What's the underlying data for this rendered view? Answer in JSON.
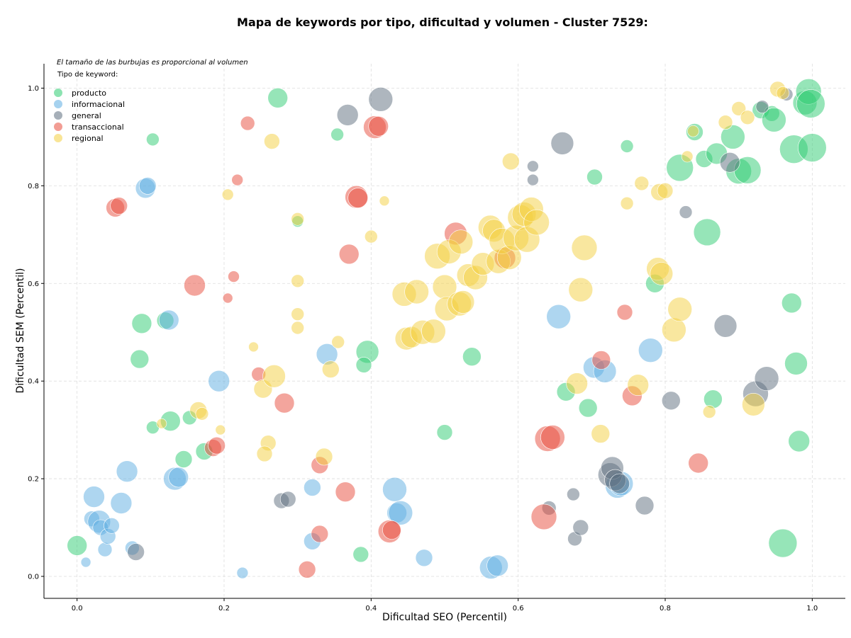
{
  "chart_data": {
    "type": "scatter",
    "title": "Mapa de keywords por tipo, dificultad y volumen - Cluster 7529:",
    "xlabel": "Dificultad SEO (Percentil)",
    "ylabel": "Dificultad SEM (Percentil)",
    "xlim": [
      -0.045,
      1.045
    ],
    "ylim": [
      -0.045,
      1.05
    ],
    "xticks": [
      "0.0",
      "0.2",
      "0.4",
      "0.6",
      "0.8",
      "1.0"
    ],
    "yticks": [
      "0.0",
      "0.2",
      "0.4",
      "0.6",
      "0.8",
      "1.0"
    ],
    "xtick_values": [
      0,
      0.2,
      0.4,
      0.6,
      0.8,
      1.0
    ],
    "ytick_values": [
      0,
      0.2,
      0.4,
      0.6,
      0.8,
      1.0
    ],
    "grid": true,
    "note": "El tamaño de las burbujas es proporcional al volumen",
    "legend": {
      "title": "Tipo de keyword:",
      "position": "top-left"
    },
    "series": [
      {
        "name": "producto",
        "color": "#2ecc71",
        "points": [
          [
            0.0,
            0.063,
            14
          ],
          [
            0.273,
            0.98,
            14
          ],
          [
            0.103,
            0.895,
            9
          ],
          [
            0.354,
            0.905,
            9
          ],
          [
            0.088,
            0.518,
            14
          ],
          [
            0.085,
            0.445,
            13
          ],
          [
            0.12,
            0.524,
            12
          ],
          [
            0.127,
            0.318,
            14
          ],
          [
            0.103,
            0.305,
            9
          ],
          [
            0.153,
            0.325,
            10
          ],
          [
            0.145,
            0.24,
            12
          ],
          [
            0.173,
            0.256,
            12
          ],
          [
            0.3,
            0.727,
            8
          ],
          [
            0.395,
            0.46,
            16
          ],
          [
            0.39,
            0.433,
            11
          ],
          [
            0.386,
            0.045,
            11
          ],
          [
            0.537,
            0.45,
            13
          ],
          [
            0.5,
            0.295,
            11
          ],
          [
            0.704,
            0.818,
            11
          ],
          [
            0.748,
            0.881,
            9
          ],
          [
            0.786,
            0.6,
            13
          ],
          [
            0.665,
            0.378,
            13
          ],
          [
            0.695,
            0.345,
            13
          ],
          [
            0.82,
            0.837,
            19
          ],
          [
            0.853,
            0.855,
            12
          ],
          [
            0.84,
            0.91,
            12
          ],
          [
            0.87,
            0.866,
            15
          ],
          [
            0.892,
            0.9,
            17
          ],
          [
            0.9,
            0.83,
            18
          ],
          [
            0.912,
            0.832,
            19
          ],
          [
            0.857,
            0.705,
            19
          ],
          [
            0.93,
            0.955,
            12
          ],
          [
            0.945,
            0.948,
            11
          ],
          [
            0.948,
            0.935,
            17
          ],
          [
            0.975,
            0.875,
            20
          ],
          [
            0.99,
            0.97,
            17
          ],
          [
            0.995,
            0.993,
            18
          ],
          [
            0.998,
            0.968,
            20
          ],
          [
            1.0,
            0.878,
            20
          ],
          [
            0.972,
            0.56,
            14
          ],
          [
            0.978,
            0.436,
            16
          ],
          [
            0.982,
            0.277,
            15
          ],
          [
            0.96,
            0.068,
            20
          ],
          [
            0.865,
            0.363,
            13
          ]
        ]
      },
      {
        "name": "informacional",
        "color": "#5dade2",
        "points": [
          [
            0.012,
            0.029,
            7
          ],
          [
            0.023,
            0.163,
            15
          ],
          [
            0.02,
            0.118,
            11
          ],
          [
            0.03,
            0.112,
            16
          ],
          [
            0.032,
            0.1,
            11
          ],
          [
            0.038,
            0.055,
            10
          ],
          [
            0.042,
            0.082,
            11
          ],
          [
            0.047,
            0.104,
            11
          ],
          [
            0.06,
            0.15,
            15
          ],
          [
            0.068,
            0.215,
            15
          ],
          [
            0.075,
            0.058,
            10
          ],
          [
            0.093,
            0.795,
            14
          ],
          [
            0.096,
            0.8,
            12
          ],
          [
            0.125,
            0.525,
            14
          ],
          [
            0.133,
            0.2,
            16
          ],
          [
            0.138,
            0.203,
            14
          ],
          [
            0.193,
            0.4,
            15
          ],
          [
            0.225,
            0.007,
            8
          ],
          [
            0.32,
            0.182,
            12
          ],
          [
            0.32,
            0.072,
            12
          ],
          [
            0.34,
            0.455,
            15
          ],
          [
            0.432,
            0.178,
            17
          ],
          [
            0.435,
            0.13,
            14
          ],
          [
            0.44,
            0.13,
            17
          ],
          [
            0.472,
            0.038,
            12
          ],
          [
            0.563,
            0.018,
            16
          ],
          [
            0.572,
            0.022,
            15
          ],
          [
            0.655,
            0.532,
            17
          ],
          [
            0.703,
            0.428,
            15
          ],
          [
            0.718,
            0.42,
            16
          ],
          [
            0.735,
            0.185,
            17
          ],
          [
            0.74,
            0.19,
            17
          ],
          [
            0.78,
            0.463,
            17
          ]
        ]
      },
      {
        "name": "general",
        "color": "#5d6d7e",
        "points": [
          [
            0.08,
            0.05,
            12
          ],
          [
            0.278,
            0.155,
            11
          ],
          [
            0.287,
            0.158,
            11
          ],
          [
            0.368,
            0.945,
            15
          ],
          [
            0.413,
            0.977,
            17
          ],
          [
            0.62,
            0.84,
            8
          ],
          [
            0.62,
            0.812,
            8
          ],
          [
            0.66,
            0.887,
            16
          ],
          [
            0.642,
            0.14,
            10
          ],
          [
            0.675,
            0.168,
            9
          ],
          [
            0.677,
            0.077,
            10
          ],
          [
            0.685,
            0.1,
            11
          ],
          [
            0.725,
            0.208,
            17
          ],
          [
            0.728,
            0.222,
            16
          ],
          [
            0.732,
            0.197,
            15
          ],
          [
            0.738,
            0.19,
            14
          ],
          [
            0.772,
            0.145,
            13
          ],
          [
            0.808,
            0.36,
            13
          ],
          [
            0.828,
            0.746,
            9
          ],
          [
            0.882,
            0.513,
            16
          ],
          [
            0.888,
            0.848,
            14
          ],
          [
            0.923,
            0.374,
            18
          ],
          [
            0.938,
            0.405,
            17
          ],
          [
            0.965,
            0.987,
            9
          ],
          [
            0.932,
            0.962,
            9
          ]
        ]
      },
      {
        "name": "transaccional",
        "color": "#e74c3c",
        "points": [
          [
            0.052,
            0.755,
            13
          ],
          [
            0.057,
            0.759,
            12
          ],
          [
            0.16,
            0.596,
            15
          ],
          [
            0.232,
            0.928,
            10
          ],
          [
            0.218,
            0.812,
            8
          ],
          [
            0.213,
            0.614,
            8
          ],
          [
            0.205,
            0.57,
            7
          ],
          [
            0.247,
            0.414,
            10
          ],
          [
            0.282,
            0.355,
            14
          ],
          [
            0.185,
            0.263,
            12
          ],
          [
            0.19,
            0.268,
            12
          ],
          [
            0.37,
            0.66,
            14
          ],
          [
            0.38,
            0.777,
            16
          ],
          [
            0.382,
            0.775,
            14
          ],
          [
            0.405,
            0.92,
            16
          ],
          [
            0.41,
            0.922,
            14
          ],
          [
            0.33,
            0.228,
            12
          ],
          [
            0.33,
            0.087,
            12
          ],
          [
            0.313,
            0.014,
            12
          ],
          [
            0.365,
            0.173,
            14
          ],
          [
            0.425,
            0.092,
            16
          ],
          [
            0.428,
            0.095,
            13
          ],
          [
            0.515,
            0.702,
            16
          ],
          [
            0.582,
            0.652,
            15
          ],
          [
            0.635,
            0.122,
            18
          ],
          [
            0.64,
            0.282,
            18
          ],
          [
            0.647,
            0.285,
            17
          ],
          [
            0.713,
            0.443,
            13
          ],
          [
            0.745,
            0.541,
            11
          ],
          [
            0.755,
            0.37,
            14
          ],
          [
            0.845,
            0.232,
            14
          ]
        ]
      },
      {
        "name": "regional",
        "color": "#f4d03f",
        "points": [
          [
            0.115,
            0.313,
            7
          ],
          [
            0.165,
            0.34,
            12
          ],
          [
            0.17,
            0.333,
            9
          ],
          [
            0.195,
            0.3,
            7
          ],
          [
            0.205,
            0.782,
            8
          ],
          [
            0.265,
            0.891,
            11
          ],
          [
            0.24,
            0.47,
            7
          ],
          [
            0.253,
            0.384,
            13
          ],
          [
            0.26,
            0.273,
            11
          ],
          [
            0.255,
            0.251,
            11
          ],
          [
            0.268,
            0.41,
            16
          ],
          [
            0.3,
            0.732,
            9
          ],
          [
            0.3,
            0.605,
            9
          ],
          [
            0.3,
            0.537,
            9
          ],
          [
            0.3,
            0.509,
            9
          ],
          [
            0.336,
            0.245,
            12
          ],
          [
            0.345,
            0.424,
            12
          ],
          [
            0.355,
            0.48,
            9
          ],
          [
            0.4,
            0.696,
            9
          ],
          [
            0.418,
            0.769,
            7
          ],
          [
            0.445,
            0.578,
            17
          ],
          [
            0.448,
            0.487,
            16
          ],
          [
            0.455,
            0.49,
            15
          ],
          [
            0.462,
            0.583,
            17
          ],
          [
            0.47,
            0.5,
            17
          ],
          [
            0.485,
            0.502,
            17
          ],
          [
            0.49,
            0.656,
            18
          ],
          [
            0.5,
            0.593,
            17
          ],
          [
            0.503,
            0.548,
            17
          ],
          [
            0.506,
            0.665,
            17
          ],
          [
            0.52,
            0.558,
            17
          ],
          [
            0.522,
            0.685,
            17
          ],
          [
            0.525,
            0.562,
            16
          ],
          [
            0.532,
            0.617,
            16
          ],
          [
            0.542,
            0.612,
            17
          ],
          [
            0.552,
            0.64,
            16
          ],
          [
            0.562,
            0.715,
            17
          ],
          [
            0.567,
            0.708,
            16
          ],
          [
            0.573,
            0.645,
            17
          ],
          [
            0.578,
            0.687,
            18
          ],
          [
            0.588,
            0.653,
            17
          ],
          [
            0.597,
            0.693,
            18
          ],
          [
            0.603,
            0.735,
            18
          ],
          [
            0.608,
            0.742,
            17
          ],
          [
            0.612,
            0.69,
            18
          ],
          [
            0.618,
            0.752,
            17
          ],
          [
            0.625,
            0.725,
            18
          ],
          [
            0.59,
            0.85,
            12
          ],
          [
            0.68,
            0.395,
            15
          ],
          [
            0.69,
            0.673,
            18
          ],
          [
            0.685,
            0.587,
            17
          ],
          [
            0.712,
            0.292,
            13
          ],
          [
            0.748,
            0.764,
            9
          ],
          [
            0.763,
            0.392,
            15
          ],
          [
            0.768,
            0.805,
            10
          ],
          [
            0.79,
            0.63,
            16
          ],
          [
            0.795,
            0.62,
            16
          ],
          [
            0.792,
            0.787,
            12
          ],
          [
            0.8,
            0.79,
            11
          ],
          [
            0.812,
            0.505,
            17
          ],
          [
            0.82,
            0.547,
            17
          ],
          [
            0.83,
            0.86,
            8
          ],
          [
            0.838,
            0.912,
            8
          ],
          [
            0.86,
            0.337,
            9
          ],
          [
            0.882,
            0.93,
            10
          ],
          [
            0.9,
            0.958,
            10
          ],
          [
            0.912,
            0.94,
            10
          ],
          [
            0.92,
            0.352,
            16
          ],
          [
            0.953,
            0.998,
            11
          ],
          [
            0.96,
            0.99,
            9
          ]
        ]
      }
    ]
  }
}
